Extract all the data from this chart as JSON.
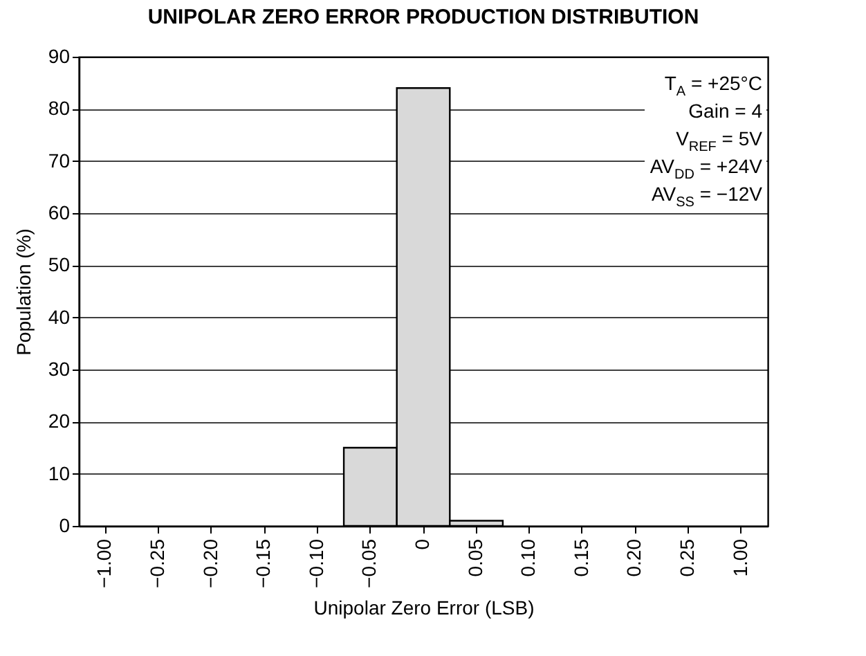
{
  "chart_data": {
    "type": "bar",
    "title": "UNIPOLAR ZERO ERROR PRODUCTION DISTRIBUTION",
    "xlabel": "Unipolar Zero Error (LSB)",
    "ylabel": "Population (%)",
    "categories": [
      "−1.00",
      "−0.25",
      "−0.20",
      "−0.15",
      "−0.10",
      "−0.05",
      "0",
      "0.05",
      "0.10",
      "0.15",
      "0.20",
      "0.25",
      "1.00"
    ],
    "values": [
      0,
      0,
      0,
      0,
      0,
      15,
      84,
      1,
      0,
      0,
      0,
      0,
      0
    ],
    "color": "#d9d9d9",
    "ylim": [
      0,
      90
    ],
    "yticks": [
      0,
      10,
      20,
      30,
      40,
      50,
      60,
      70,
      80,
      90
    ],
    "grid": "y",
    "annotations": [
      "T$_{A}$ = +25°C",
      "Gain = 4",
      "V$_{REF}$ = 5V",
      "AV$_{DD}$ = +24V",
      "AV$_{SS}$ = −12V"
    ]
  }
}
